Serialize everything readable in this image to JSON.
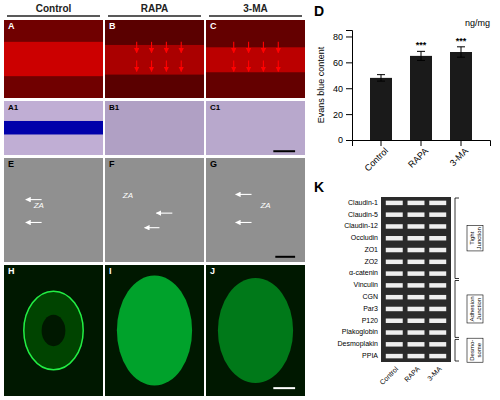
{
  "chart_data": [
    {
      "type": "bar",
      "title": "D",
      "categories": [
        "Control",
        "RAPA",
        "3-MA"
      ],
      "values": [
        48,
        65,
        68
      ],
      "errors": [
        2.5,
        3.5,
        4.0
      ],
      "significance": [
        null,
        "***",
        "***"
      ],
      "color": "#1a1a1a",
      "y_label": "Evans blue content",
      "annotations": [
        "ng/mg"
      ],
      "ylim": [
        0,
        85
      ],
      "yticks": [
        0,
        20,
        40,
        60,
        80
      ]
    },
    {
      "type": "gel",
      "title": "K",
      "categories": [
        "Claudin-1",
        "Claudin-5",
        "Claudin-12",
        "Occludin",
        "ZO1",
        "ZO2",
        "α-catenin",
        "Vinculin",
        "CGN",
        "Par3",
        "P120",
        "Plakoglobin",
        "Desmoplakin",
        "PPIA"
      ],
      "lanes": [
        "Control",
        "RAPA",
        "3-MA"
      ],
      "groups": [
        {
          "label": "Tight\nJunction",
          "range": [
            0,
            7
          ]
        },
        {
          "label": "Adhesion\nJunction",
          "range": [
            7,
            12
          ]
        },
        {
          "label": "Desmo-\nsome",
          "range": [
            12,
            14
          ]
        }
      ]
    },
    {
      "type": "image",
      "categories": [
        "Control",
        "RAPA",
        "3-MA"
      ],
      "panels": [
        {
          "label": "A"
        },
        {
          "label": "B"
        },
        {
          "label": "C"
        },
        {
          "label": "A1"
        },
        {
          "label": "B1"
        },
        {
          "label": "C1"
        },
        {
          "label": "E",
          "annotations": [
            "ZA"
          ]
        },
        {
          "label": "F",
          "annotations": [
            "ZA"
          ]
        },
        {
          "label": "G",
          "annotations": [
            "ZA"
          ]
        },
        {
          "label": "H"
        },
        {
          "label": "I"
        },
        {
          "label": "J"
        }
      ]
    }
  ]
}
